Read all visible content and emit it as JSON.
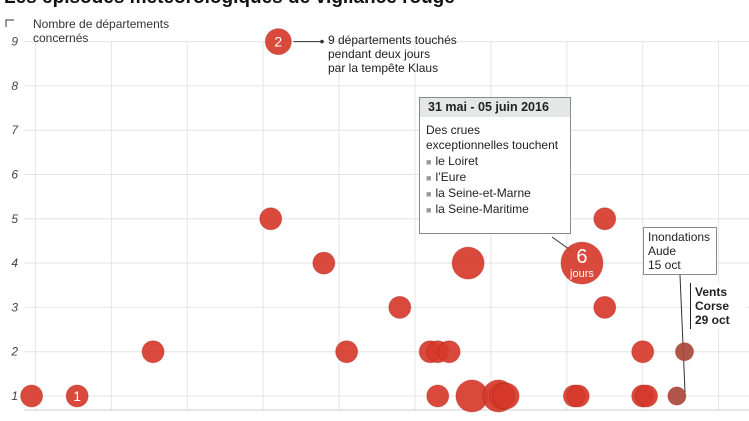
{
  "title": "Les épisodes météorologiques de vigilance rouge",
  "chart_data": {
    "type": "scatter",
    "ylabel": "Nombre de départements concernés",
    "ylim": [
      0.5,
      9.5
    ],
    "yticks": [
      1,
      2,
      3,
      4,
      5,
      6,
      7,
      8,
      9
    ],
    "xlim": [
      2000.7,
      2019.8
    ],
    "grid": true,
    "marker_color": "#d63a2b",
    "points": [
      {
        "x": 2000.9,
        "y": 1,
        "days": 1
      },
      {
        "x": 2002.1,
        "y": 1,
        "days": 1,
        "label": "1"
      },
      {
        "x": 2004.1,
        "y": 2,
        "days": 1
      },
      {
        "x": 2007.2,
        "y": 5,
        "days": 1
      },
      {
        "x": 2007.4,
        "y": 9,
        "days": 2,
        "label": "2"
      },
      {
        "x": 2008.6,
        "y": 4,
        "days": 1
      },
      {
        "x": 2009.2,
        "y": 2,
        "days": 1
      },
      {
        "x": 2010.6,
        "y": 3,
        "days": 1
      },
      {
        "x": 2011.4,
        "y": 2,
        "days": 1
      },
      {
        "x": 2011.6,
        "y": 2,
        "days": 1
      },
      {
        "x": 2011.9,
        "y": 2,
        "days": 1
      },
      {
        "x": 2011.6,
        "y": 1,
        "days": 1
      },
      {
        "x": 2012.5,
        "y": 1,
        "days": 3
      },
      {
        "x": 2012.4,
        "y": 4,
        "days": 3
      },
      {
        "x": 2013.2,
        "y": 1,
        "days": 3
      },
      {
        "x": 2013.3,
        "y": 1,
        "days": 2
      },
      {
        "x": 2013.4,
        "y": 1,
        "days": 2
      },
      {
        "x": 2015.2,
        "y": 1,
        "days": 1
      },
      {
        "x": 2015.3,
        "y": 1,
        "days": 1
      },
      {
        "x": 2015.4,
        "y": 4,
        "days": 6,
        "label": "6",
        "sublabel": "jours"
      },
      {
        "x": 2016.0,
        "y": 5,
        "days": 1
      },
      {
        "x": 2016.0,
        "y": 3,
        "days": 1
      },
      {
        "x": 2017.0,
        "y": 2,
        "days": 1
      },
      {
        "x": 2017.0,
        "y": 1,
        "days": 1
      },
      {
        "x": 2017.1,
        "y": 1,
        "days": 1
      },
      {
        "x": 2017.9,
        "y": 1,
        "days": 0.5
      },
      {
        "x": 2018.1,
        "y": 2,
        "days": 0.5
      }
    ]
  },
  "annotations": {
    "klaus": "9 départements touchés\npendant deux jours\npar la tempête Klaus",
    "crues_date": "31 mai - 05 juin 2016",
    "crues_text": "Des crues exceptionnelles touchent",
    "crues_items": [
      "le Loiret",
      "l’Eure",
      "la Seine-et-Marne",
      "la Seine-Maritime"
    ],
    "aude": "Inondations\nAude\n15 oct",
    "corse": "Vents\nCorse\n29 oct"
  }
}
